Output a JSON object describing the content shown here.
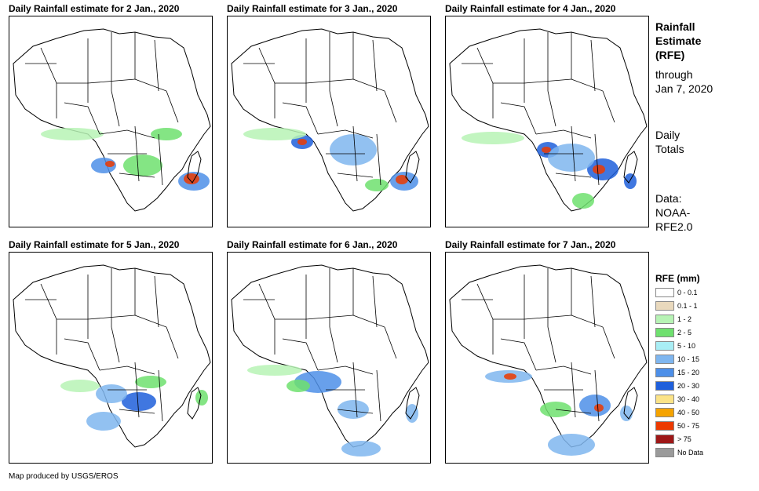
{
  "panels": [
    {
      "title": "Daily Rainfall estimate for 2 Jan., 2020"
    },
    {
      "title": "Daily Rainfall estimate for 3 Jan., 2020"
    },
    {
      "title": "Daily Rainfall estimate for 4 Jan., 2020"
    },
    {
      "title": "Daily Rainfall estimate for 5 Jan., 2020"
    },
    {
      "title": "Daily Rainfall estimate for 6 Jan., 2020"
    },
    {
      "title": "Daily Rainfall estimate for 7 Jan., 2020"
    }
  ],
  "sidebar": {
    "title_line1": "Rainfall",
    "title_line2": "Estimate",
    "title_line3": "(RFE)",
    "through_line1": "through",
    "through_line2": "Jan 7, 2020",
    "totals_line1": "Daily",
    "totals_line2": "Totals",
    "data_line1": "Data:",
    "data_line2": "NOAA-",
    "data_line3": "RFE2.0"
  },
  "legend": {
    "title": "RFE (mm)",
    "items": [
      {
        "label": "0 - 0.1",
        "color": "#ffffff"
      },
      {
        "label": "0.1 - 1",
        "color": "#e9d9bd"
      },
      {
        "label": "1 - 2",
        "color": "#b7f3b5"
      },
      {
        "label": "2 - 5",
        "color": "#6fe06f"
      },
      {
        "label": "5 - 10",
        "color": "#a9eef5"
      },
      {
        "label": "10 - 15",
        "color": "#7fb6ef"
      },
      {
        "label": "15 - 20",
        "color": "#4d8fe8"
      },
      {
        "label": "20 - 30",
        "color": "#1f5fdb"
      },
      {
        "label": "30 - 40",
        "color": "#fbe387"
      },
      {
        "label": "40 - 50",
        "color": "#f5a300"
      },
      {
        "label": "50 - 75",
        "color": "#ec3a00"
      },
      {
        "label": "> 75",
        "color": "#9e1717"
      },
      {
        "label": "No Data",
        "color": "#9a9a9a"
      }
    ]
  },
  "footer": "Map produced by USGS/EROS"
}
